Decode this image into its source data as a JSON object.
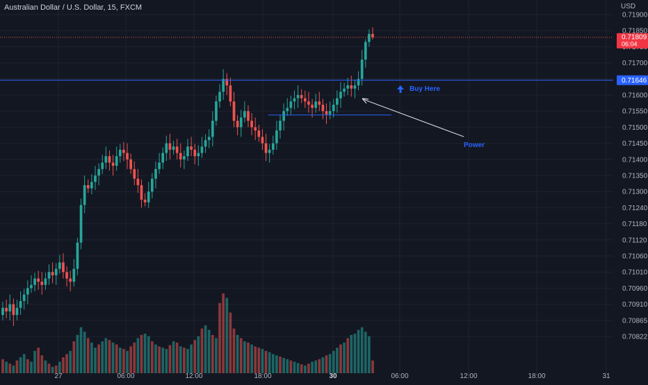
{
  "header": {
    "title": "Australian Dollar / U.S. Dollar, 15, FXCM",
    "currency": "USD"
  },
  "price_axis": {
    "ticks": [
      "0.71900",
      "0.71850",
      "0.71750",
      "0.71700",
      "0.71650",
      "0.71600",
      "0.71550",
      "0.71500",
      "0.71450",
      "0.71400",
      "0.71350",
      "0.71300",
      "0.71240",
      "0.71180",
      "0.71120",
      "0.71060",
      "0.71010",
      "0.70960",
      "0.70910",
      "0.70865",
      "0.70822"
    ]
  },
  "time_axis": {
    "ticks": [
      "27",
      "06:00",
      "12:00",
      "18:00",
      "30",
      "06:00",
      "12:00",
      "18:00",
      "31"
    ]
  },
  "last_price": {
    "value": "0.71809",
    "countdown": "06:04"
  },
  "level": {
    "value": "0.71646"
  },
  "annotations": {
    "buy_label": "Buy Here",
    "power_label": "Power"
  },
  "colors": {
    "background": "#131722",
    "up": "#26a69a",
    "down": "#ef5350",
    "level_line": "#2962ff",
    "annotation": "#2962ff",
    "last_price_bg": "#f23645",
    "arrow": "#d1d4dc"
  },
  "chart_data": {
    "type": "candlestick",
    "title": "Australian Dollar / U.S. Dollar, 15, FXCM",
    "symbol": "AUD/USD",
    "timeframe": "15",
    "source": "FXCM",
    "x_tick_labels": [
      "27",
      "06:00",
      "12:00",
      "18:00",
      "30",
      "06:00",
      "12:00",
      "18:00",
      "31"
    ],
    "price_range": [
      0.7081,
      0.719
    ],
    "series": [
      {
        "kind": "ohlc_approx",
        "close": [
          0.709,
          0.7089,
          0.7091,
          0.7088,
          0.709,
          0.7092,
          0.7094,
          0.7096,
          0.7097,
          0.7099,
          0.7098,
          0.7097,
          0.7099,
          0.7101,
          0.71,
          0.7102,
          0.7104,
          0.7101,
          0.7099,
          0.7098,
          0.7102,
          0.7111,
          0.7125,
          0.7132,
          0.7131,
          0.7133,
          0.7135,
          0.7137,
          0.7139,
          0.7141,
          0.7139,
          0.7138,
          0.7141,
          0.7143,
          0.7142,
          0.714,
          0.7137,
          0.7134,
          0.7132,
          0.7127,
          0.7126,
          0.713,
          0.7134,
          0.7137,
          0.7139,
          0.7142,
          0.7145,
          0.7143,
          0.7144,
          0.7142,
          0.714,
          0.7141,
          0.7144,
          0.7143,
          0.7141,
          0.7142,
          0.7144,
          0.7146,
          0.7147,
          0.7152,
          0.7158,
          0.7161,
          0.7165,
          0.7163,
          0.7158,
          0.7152,
          0.715,
          0.7153,
          0.7155,
          0.7152,
          0.715,
          0.7149,
          0.7147,
          0.7145,
          0.7142,
          0.7143,
          0.7145,
          0.7149,
          0.7152,
          0.7155,
          0.7156,
          0.7158,
          0.7159,
          0.716,
          0.7159,
          0.7158,
          0.7157,
          0.7156,
          0.7158,
          0.7157,
          0.7155,
          0.7154,
          0.7155,
          0.7157,
          0.7159,
          0.7161,
          0.7162,
          0.7163,
          0.7162,
          0.7163,
          0.7165,
          0.7171,
          0.7178,
          0.7183,
          0.7181
        ]
      },
      {
        "name": "Volume",
        "values": [
          22,
          18,
          15,
          12,
          20,
          25,
          30,
          22,
          18,
          35,
          40,
          28,
          20,
          15,
          10,
          12,
          18,
          25,
          30,
          35,
          50,
          60,
          72,
          65,
          55,
          48,
          40,
          45,
          50,
          55,
          52,
          48,
          45,
          40,
          38,
          35,
          42,
          48,
          55,
          60,
          62,
          58,
          50,
          45,
          42,
          40,
          38,
          44,
          50,
          48,
          42,
          40,
          38,
          45,
          52,
          58,
          70,
          75,
          68,
          60,
          55,
          110,
          125,
          118,
          95,
          70,
          60,
          55,
          50,
          48,
          45,
          42,
          40,
          38,
          35,
          33,
          30,
          28,
          26,
          24,
          22,
          20,
          18,
          16,
          14,
          12,
          15,
          18,
          20,
          22,
          25,
          28,
          30,
          35,
          40,
          45,
          48,
          55,
          60,
          62,
          68,
          72,
          65,
          58,
          20
        ],
        "colors_down": [
          1,
          0,
          1,
          0,
          1,
          0,
          0,
          1,
          0,
          0,
          1,
          1,
          0,
          1,
          0,
          1,
          0,
          1,
          1,
          0,
          1,
          0,
          0,
          0,
          1,
          0,
          0,
          1,
          0,
          0,
          1,
          0,
          1,
          0,
          1,
          0,
          1,
          1,
          0,
          1,
          0,
          0,
          1,
          0,
          1,
          0,
          0,
          1,
          0,
          1,
          0,
          1,
          0,
          0,
          1,
          0,
          1,
          0,
          0,
          1,
          0,
          1,
          1,
          0,
          1,
          1,
          0,
          1,
          0,
          1,
          0,
          1,
          1,
          0,
          1,
          0,
          0,
          0,
          1,
          0,
          0,
          1,
          0,
          0,
          1,
          0,
          1,
          0,
          0,
          1,
          0,
          1,
          0,
          0,
          0,
          1,
          0,
          1,
          0,
          0,
          0,
          0,
          0,
          0,
          1
        ]
      }
    ],
    "horizontal_levels": [
      0.71646,
      0.71538
    ],
    "last_price": 0.71809
  }
}
